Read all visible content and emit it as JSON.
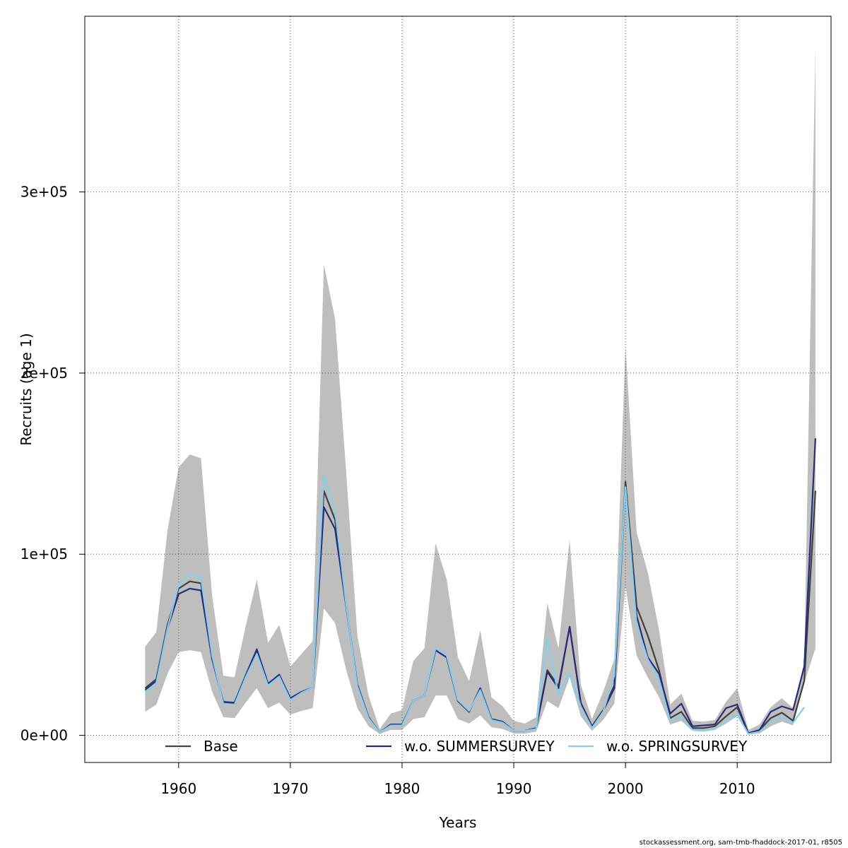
{
  "chart_data": {
    "type": "line",
    "xlabel": "Years",
    "ylabel": "Recruits (age 1)",
    "xlim": [
      1951.6,
      2018.4
    ],
    "ylim": [
      -15000,
      397000
    ],
    "x_ticks": [
      1960,
      1970,
      1980,
      1990,
      2000,
      2010
    ],
    "x_tick_labels": [
      "1960",
      "1970",
      "1980",
      "1990",
      "2000",
      "2010"
    ],
    "y_ticks": [
      0,
      100000,
      200000,
      300000
    ],
    "y_tick_labels": [
      "0e+00",
      "1e+05",
      "2e+05",
      "3e+05"
    ],
    "grid": true,
    "legend_position": "bottom",
    "x": [
      1957,
      1958,
      1959,
      1960,
      1961,
      1962,
      1963,
      1964,
      1965,
      1966,
      1967,
      1968,
      1969,
      1970,
      1971,
      1972,
      1973,
      1974,
      1975,
      1976,
      1977,
      1978,
      1979,
      1980,
      1981,
      1982,
      1983,
      1984,
      1985,
      1986,
      1987,
      1988,
      1989,
      1990,
      1991,
      1992,
      1993,
      1994,
      1995,
      1996,
      1997,
      1998,
      1999,
      2000,
      2001,
      2002,
      2003,
      2004,
      2005,
      2006,
      2007,
      2008,
      2009,
      2010,
      2011,
      2012,
      2013,
      2014,
      2015,
      2016,
      2017
    ],
    "band": {
      "name": "Base confidence interval",
      "color": "#bebebe",
      "lower": [
        13000,
        17000,
        34000,
        46000,
        47000,
        46000,
        24000,
        10000,
        9500,
        18000,
        26000,
        15000,
        18000,
        11500,
        13500,
        15000,
        70000,
        62000,
        36000,
        15000,
        5000,
        800,
        3000,
        3000,
        9000,
        10000,
        22000,
        22000,
        9000,
        6500,
        11000,
        4500,
        3500,
        1000,
        1000,
        2000,
        19000,
        15000,
        32000,
        10500,
        2500,
        8500,
        17500,
        82000,
        44000,
        32000,
        21000,
        6000,
        8000,
        2500,
        2000,
        3000,
        6500,
        10500,
        500,
        1000,
        5000,
        7500,
        5500,
        29000,
        48000
      ],
      "upper": [
        49000,
        57000,
        113000,
        148000,
        155000,
        153000,
        77000,
        33000,
        32000,
        60000,
        86000,
        51000,
        61000,
        38000,
        45000,
        52000,
        260000,
        230000,
        145000,
        55000,
        22000,
        3500,
        12000,
        14000,
        41000,
        48000,
        106000,
        86000,
        43000,
        30000,
        58000,
        21000,
        16000,
        8000,
        6500,
        10000,
        73000,
        48000,
        108000,
        28000,
        9000,
        24000,
        42000,
        215000,
        112000,
        90000,
        58000,
        17000,
        23000,
        8000,
        7500,
        8500,
        18500,
        26000,
        3000,
        6000,
        15500,
        20500,
        15000,
        40000,
        380000
      ]
    },
    "series": [
      {
        "name": "Base",
        "color": "#404040",
        "values": [
          26000,
          31000,
          61000,
          81000,
          85000,
          84000,
          43000,
          18000,
          17500,
          33000,
          47000,
          28000,
          33000,
          20000,
          23500,
          26500,
          135000,
          119000,
          72000,
          28000,
          10000,
          1500,
          6000,
          6000,
          19000,
          22000,
          47000,
          43000,
          19000,
          13000,
          26000,
          9000,
          7500,
          2500,
          2500,
          4000,
          36000,
          27000,
          60000,
          18000,
          5000,
          14000,
          27500,
          140000,
          71000,
          55000,
          36000,
          9500,
          13000,
          4000,
          4000,
          5000,
          10500,
          15500,
          1200,
          2800,
          9500,
          12500,
          8000,
          30000,
          135000
        ]
      },
      {
        "name": "w.o. SUMMERSURVEY",
        "color": "#2b2b7a",
        "values": [
          25000,
          30000,
          59000,
          78000,
          81000,
          80000,
          42000,
          18500,
          18000,
          33000,
          47500,
          28500,
          33500,
          20500,
          24000,
          26500,
          126000,
          114000,
          71000,
          28000,
          10000,
          1500,
          6000,
          6000,
          19000,
          22000,
          47000,
          43000,
          19000,
          13000,
          26000,
          9000,
          7500,
          2500,
          2500,
          4000,
          35000,
          26000,
          60000,
          17500,
          4500,
          13500,
          26000,
          137000,
          66000,
          43000,
          34000,
          12000,
          17500,
          5000,
          5500,
          6000,
          15000,
          17000,
          1200,
          3000,
          13000,
          16000,
          14000,
          38000,
          164000
        ]
      },
      {
        "name": "w.o. SPRINGSURVEY",
        "color": "#87ceeb",
        "values": [
          24000,
          29000,
          59000,
          83000,
          89000,
          87000,
          44000,
          17500,
          17000,
          32000,
          45000,
          27500,
          32500,
          19500,
          23500,
          26500,
          144000,
          124000,
          72000,
          27000,
          9500,
          1500,
          5500,
          5500,
          19000,
          22000,
          48000,
          44000,
          19500,
          13500,
          25000,
          8500,
          7000,
          2500,
          2500,
          3500,
          54000,
          22000,
          35000,
          16000,
          4000,
          13000,
          33000,
          137000,
          61000,
          42000,
          31000,
          8000,
          10000,
          3000,
          2500,
          3500,
          7500,
          11500,
          800,
          2000,
          7500,
          10000,
          7000,
          15500,
          null
        ]
      }
    ]
  },
  "footer": "stockassessment.org, sam-tmb-fhaddock-2017-01, r8505"
}
